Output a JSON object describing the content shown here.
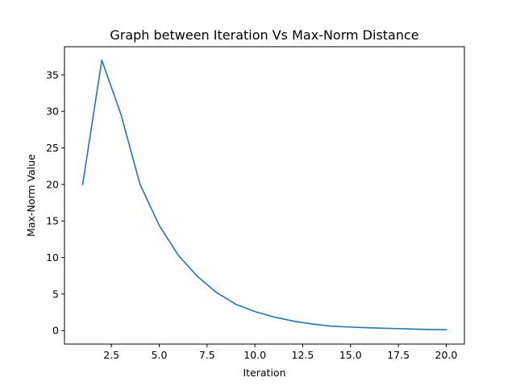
{
  "chart_data": {
    "type": "line",
    "title": "Graph between Iteration Vs Max-Norm Distance",
    "xlabel": "Iteration",
    "ylabel": "Max-Norm Value",
    "xlim": [
      0.05,
      20.95
    ],
    "ylim": [
      -1.85,
      38.85
    ],
    "xticks": [
      2.5,
      5.0,
      7.5,
      10.0,
      12.5,
      15.0,
      17.5,
      20.0
    ],
    "xtick_labels": [
      "2.5",
      "5.0",
      "7.5",
      "10.0",
      "12.5",
      "15.0",
      "17.5",
      "20.0"
    ],
    "yticks": [
      0,
      5,
      10,
      15,
      20,
      25,
      30,
      35
    ],
    "ytick_labels": [
      "0",
      "5",
      "10",
      "15",
      "20",
      "25",
      "30",
      "35"
    ],
    "grid": false,
    "series": [
      {
        "color": "#1f77b4",
        "x": [
          1,
          2,
          3,
          4,
          5,
          6,
          7,
          8,
          9,
          10,
          11,
          12,
          13,
          14,
          15,
          16,
          17,
          18,
          19,
          20
        ],
        "y": [
          20.0,
          37.0,
          29.6,
          20.0,
          14.4,
          10.3,
          7.4,
          5.2,
          3.6,
          2.6,
          1.85,
          1.3,
          0.9,
          0.6,
          0.48,
          0.38,
          0.3,
          0.22,
          0.16,
          0.12
        ]
      }
    ]
  }
}
